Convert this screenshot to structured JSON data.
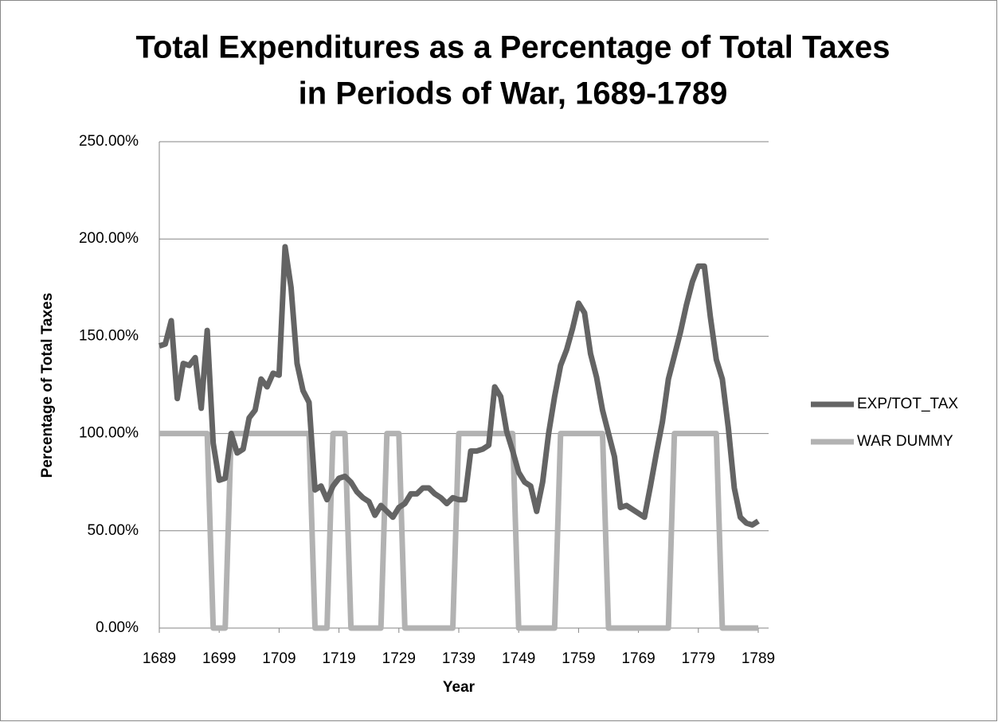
{
  "chart_data": {
    "type": "line",
    "title": [
      "Total Expenditures as a Percentage of Total Taxes",
      "in Periods of War, 1689-1789"
    ],
    "x_label": "Year",
    "y_label": "Percentage of Total Taxes",
    "x": [
      1689,
      1690,
      1691,
      1692,
      1693,
      1694,
      1695,
      1696,
      1697,
      1698,
      1699,
      1700,
      1701,
      1702,
      1703,
      1704,
      1705,
      1706,
      1707,
      1708,
      1709,
      1710,
      1711,
      1712,
      1713,
      1714,
      1715,
      1716,
      1717,
      1718,
      1719,
      1720,
      1721,
      1722,
      1723,
      1724,
      1725,
      1726,
      1727,
      1728,
      1729,
      1730,
      1731,
      1732,
      1733,
      1734,
      1735,
      1736,
      1737,
      1738,
      1739,
      1740,
      1741,
      1742,
      1743,
      1744,
      1745,
      1746,
      1747,
      1748,
      1749,
      1750,
      1751,
      1752,
      1753,
      1754,
      1755,
      1756,
      1757,
      1758,
      1759,
      1760,
      1761,
      1762,
      1763,
      1764,
      1765,
      1766,
      1767,
      1768,
      1769,
      1770,
      1771,
      1772,
      1773,
      1774,
      1775,
      1776,
      1777,
      1778,
      1779,
      1780,
      1781,
      1782,
      1783,
      1784,
      1785,
      1786,
      1787,
      1788,
      1789
    ],
    "series": [
      {
        "name": "EXP/TOT_TAX",
        "color": "#646464",
        "values": [
          145,
          146,
          158,
          118,
          136,
          135,
          139,
          113,
          153,
          95,
          76,
          77,
          100,
          90,
          92,
          108,
          112,
          128,
          124,
          131,
          130,
          196,
          175,
          136,
          122,
          116,
          71,
          73,
          66,
          73,
          77,
          78,
          75,
          70,
          67,
          65,
          58,
          63,
          60,
          57,
          62,
          64,
          69,
          69,
          72,
          72,
          69,
          67,
          64,
          67,
          66,
          66,
          91,
          91,
          92,
          94,
          124,
          119,
          101,
          91,
          80,
          75,
          73,
          60,
          75,
          100,
          119,
          135,
          143,
          154,
          167,
          162,
          141,
          129,
          112,
          100,
          88,
          62,
          63,
          61,
          59,
          57,
          73,
          90,
          106,
          128,
          140,
          152,
          166,
          178,
          186,
          186,
          160,
          138,
          128,
          103,
          72,
          57,
          54,
          53,
          55
        ]
      },
      {
        "name": "WAR DUMMY",
        "color": "#b2b2b2",
        "values": [
          100,
          100,
          100,
          100,
          100,
          100,
          100,
          100,
          100,
          0,
          0,
          0,
          100,
          100,
          100,
          100,
          100,
          100,
          100,
          100,
          100,
          100,
          100,
          100,
          100,
          100,
          0,
          0,
          0,
          100,
          100,
          100,
          0,
          0,
          0,
          0,
          0,
          0,
          100,
          100,
          100,
          0,
          0,
          0,
          0,
          0,
          0,
          0,
          0,
          0,
          100,
          100,
          100,
          100,
          100,
          100,
          100,
          100,
          100,
          100,
          0,
          0,
          0,
          0,
          0,
          0,
          0,
          100,
          100,
          100,
          100,
          100,
          100,
          100,
          100,
          0,
          0,
          0,
          0,
          0,
          0,
          0,
          0,
          0,
          0,
          0,
          100,
          100,
          100,
          100,
          100,
          100,
          100,
          100,
          0,
          0,
          0,
          0,
          0,
          0,
          0
        ]
      }
    ],
    "xlim": [
      1689,
      1789
    ],
    "xticks": [
      1689,
      1699,
      1709,
      1719,
      1729,
      1739,
      1749,
      1759,
      1769,
      1779,
      1789
    ],
    "ylim": [
      0,
      250
    ],
    "yticks": [
      {
        "value": 0,
        "label": "0.00%"
      },
      {
        "value": 50,
        "label": "50.00%"
      },
      {
        "value": 100,
        "label": "100.00%"
      },
      {
        "value": 150,
        "label": "150.00%"
      },
      {
        "value": 200,
        "label": "200.00%"
      },
      {
        "value": 250,
        "label": "250.00%"
      }
    ],
    "grid": true,
    "legend": "right"
  }
}
